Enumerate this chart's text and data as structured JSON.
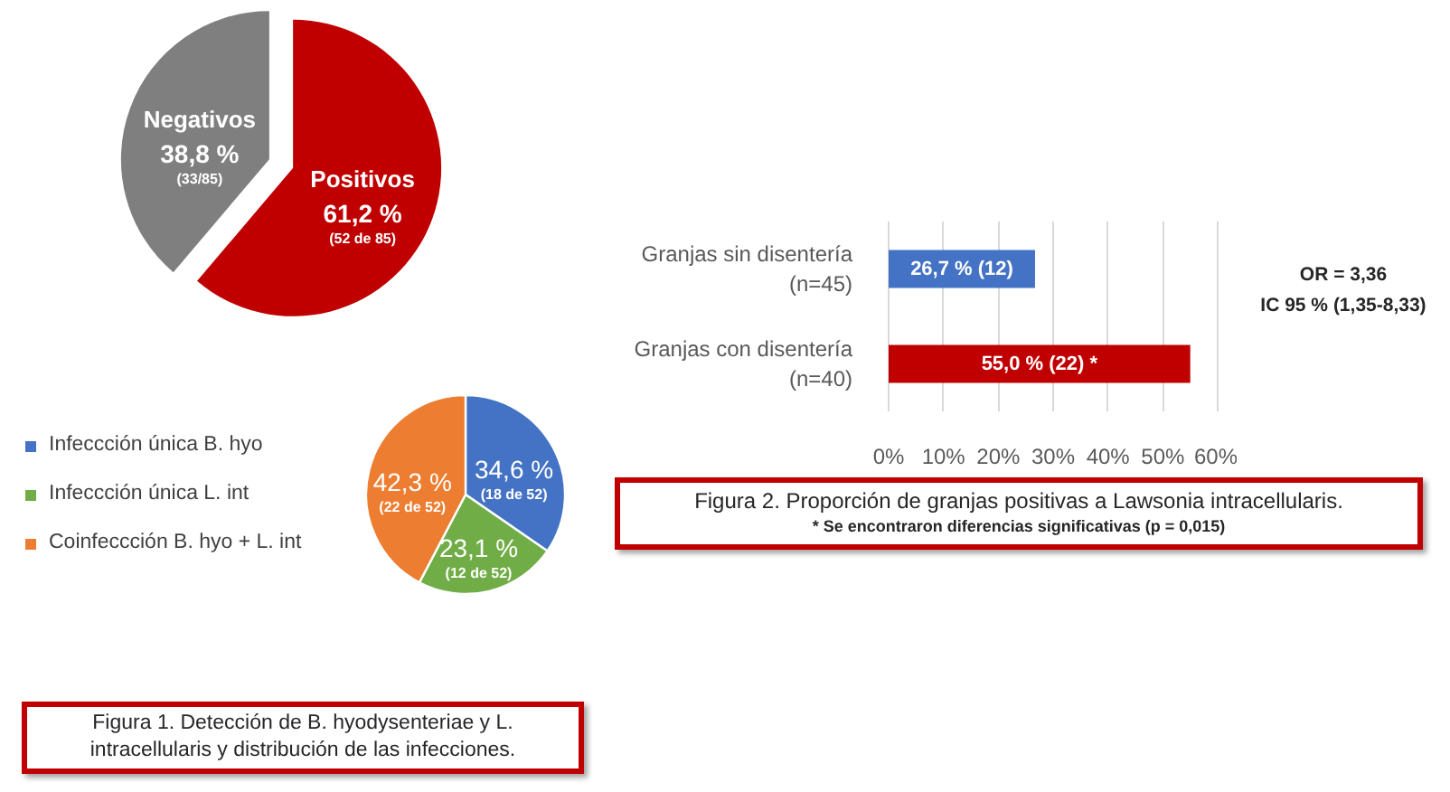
{
  "chart_data": [
    {
      "type": "pie",
      "categories": [
        "Positivos",
        "Negativos"
      ],
      "values": [
        61.2,
        38.8
      ],
      "colors": [
        "#c00000",
        "#7f7f7f"
      ],
      "value_labels": [
        "61,2 %\n(52 de 85)",
        "38,8 %\n(33/85)"
      ]
    },
    {
      "type": "pie",
      "title": "Figura 1. Detección de B. hyodysenteriae y L. intracellularis y distribución de las infecciones.",
      "categories": [
        "Infeccción única B. hyo",
        "Infeccción única L. int",
        "Coinfeccción B. hyo + L. int"
      ],
      "values": [
        34.6,
        23.1,
        42.3
      ],
      "colors": [
        "#4472c4",
        "#70ad47",
        "#ed7d31"
      ],
      "value_labels": [
        "34,6 %\n(18 de 52)",
        "23,1 %\n(12 de 52)",
        "42,3 %\n(22 de 52)"
      ],
      "legend": "left"
    },
    {
      "type": "bar",
      "orientation": "horizontal",
      "title": "Figura 2. Proporción de granjas positivas a Lawsonia intracellularis.",
      "categories": [
        "Granjas sin disentería (n=45)",
        "Granjas con disentería (n=40)"
      ],
      "values": [
        26.7,
        55.0
      ],
      "colors": [
        "#4472c4",
        "#c00000"
      ],
      "value_labels": [
        "26,7 % (12)",
        "55,0 % (22) *"
      ],
      "xlim": [
        0,
        60
      ],
      "xticks": [
        {
          "value": 0,
          "label": "0%"
        },
        {
          "value": 10,
          "label": "10%"
        },
        {
          "value": 20,
          "label": "20%"
        },
        {
          "value": 30,
          "label": "30%"
        },
        {
          "value": 40,
          "label": "40%"
        },
        {
          "value": 50,
          "label": "50%"
        },
        {
          "value": 60,
          "label": "60%"
        }
      ],
      "grid": "x",
      "annotations": [
        "OR = 3,36",
        "IC 95 % (1,35-8,33)",
        "* Se encontraron diferencias significativas (p = 0,015)"
      ]
    }
  ]
}
